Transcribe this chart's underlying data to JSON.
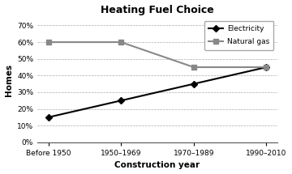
{
  "title": "Heating Fuel Choice",
  "xlabel": "Construction year",
  "ylabel": "Homes",
  "categories": [
    "Before 1950",
    "1950–1969",
    "1970–1989",
    "1990–2010"
  ],
  "electricity": [
    15,
    25,
    35,
    45
  ],
  "natural_gas": [
    60,
    60,
    45,
    45
  ],
  "electricity_color": "#000000",
  "natural_gas_color": "#888888",
  "ylim": [
    0,
    75
  ],
  "yticks": [
    0,
    10,
    20,
    30,
    40,
    50,
    60,
    70
  ],
  "legend_labels": [
    "Electricity",
    "Natural gas"
  ]
}
